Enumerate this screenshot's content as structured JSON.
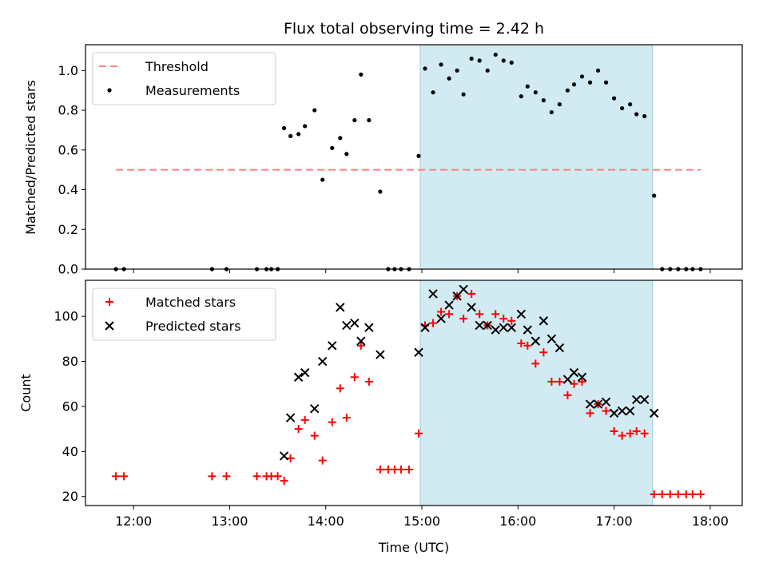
{
  "title": "Flux total observing time = 2.42 h",
  "xlabel": "Time (UTC)",
  "x_ticks": [
    "12:00",
    "13:00",
    "14:00",
    "15:00",
    "16:00",
    "17:00",
    "18:00"
  ],
  "colors": {
    "shade": "#add8e6",
    "threshold": "#ff7f7f",
    "measurements": "#000000",
    "matched": "#ff0000",
    "predicted": "#000000"
  },
  "chart_data": [
    {
      "type": "scatter",
      "ylabel": "Matched/Predicted stars",
      "xlim": [
        "11:30",
        "18:20"
      ],
      "ylim": [
        0,
        1.13
      ],
      "y_ticks": [
        0.0,
        0.2,
        0.4,
        0.6,
        0.8,
        1.0
      ],
      "y_tick_labels": [
        "0.0",
        "0.2",
        "0.4",
        "0.6",
        "0.8",
        "1.0"
      ],
      "shaded_span": [
        "14:59",
        "17:24"
      ],
      "legend_position": "upper-left",
      "threshold": {
        "name": "Threshold",
        "y": 0.5,
        "x_range": [
          "11:49",
          "17:54"
        ]
      },
      "series": [
        {
          "name": "Measurements",
          "points": [
            [
              "11:49",
              0.0
            ],
            [
              "11:54",
              0.0
            ],
            [
              "12:49",
              0.0
            ],
            [
              "12:58",
              0.0
            ],
            [
              "13:17",
              0.0
            ],
            [
              "13:23",
              0.0
            ],
            [
              "13:26",
              0.0
            ],
            [
              "13:30",
              0.0
            ],
            [
              "13:34",
              0.71
            ],
            [
              "13:38",
              0.67
            ],
            [
              "13:43",
              0.68
            ],
            [
              "13:47",
              0.72
            ],
            [
              "13:53",
              0.8
            ],
            [
              "13:58",
              0.45
            ],
            [
              "14:04",
              0.61
            ],
            [
              "14:09",
              0.66
            ],
            [
              "14:13",
              0.58
            ],
            [
              "14:18",
              0.75
            ],
            [
              "14:22",
              0.98
            ],
            [
              "14:27",
              0.75
            ],
            [
              "14:34",
              0.39
            ],
            [
              "14:39",
              0.0
            ],
            [
              "14:43",
              0.0
            ],
            [
              "14:47",
              0.0
            ],
            [
              "14:52",
              0.0
            ],
            [
              "14:58",
              0.57
            ],
            [
              "15:02",
              1.01
            ],
            [
              "15:07",
              0.89
            ],
            [
              "15:12",
              1.03
            ],
            [
              "15:17",
              0.96
            ],
            [
              "15:22",
              1.0
            ],
            [
              "15:26",
              0.88
            ],
            [
              "15:31",
              1.06
            ],
            [
              "15:36",
              1.05
            ],
            [
              "15:41",
              1.0
            ],
            [
              "15:46",
              1.08
            ],
            [
              "15:51",
              1.05
            ],
            [
              "15:56",
              1.04
            ],
            [
              "16:02",
              0.87
            ],
            [
              "16:06",
              0.92
            ],
            [
              "16:11",
              0.89
            ],
            [
              "16:16",
              0.85
            ],
            [
              "16:21",
              0.79
            ],
            [
              "16:26",
              0.83
            ],
            [
              "16:31",
              0.9
            ],
            [
              "16:35",
              0.93
            ],
            [
              "16:40",
              0.97
            ],
            [
              "16:45",
              0.94
            ],
            [
              "16:50",
              1.0
            ],
            [
              "16:55",
              0.94
            ],
            [
              "17:00",
              0.86
            ],
            [
              "17:05",
              0.81
            ],
            [
              "17:10",
              0.83
            ],
            [
              "17:14",
              0.78
            ],
            [
              "17:19",
              0.77
            ],
            [
              "17:25",
              0.37
            ],
            [
              "17:30",
              0.0
            ],
            [
              "17:35",
              0.0
            ],
            [
              "17:40",
              0.0
            ],
            [
              "17:45",
              0.0
            ],
            [
              "17:49",
              0.0
            ],
            [
              "17:54",
              0.0
            ]
          ]
        }
      ]
    },
    {
      "type": "scatter",
      "ylabel": "Count",
      "xlim": [
        "11:30",
        "18:20"
      ],
      "ylim": [
        16,
        116
      ],
      "y_ticks": [
        20,
        40,
        60,
        80,
        100
      ],
      "y_tick_labels": [
        "20",
        "40",
        "60",
        "80",
        "100"
      ],
      "shaded_span": [
        "14:59",
        "17:24"
      ],
      "legend_position": "upper-left",
      "series": [
        {
          "name": "Matched stars",
          "marker": "plus",
          "points": [
            [
              "11:49",
              29
            ],
            [
              "11:54",
              29
            ],
            [
              "12:49",
              29
            ],
            [
              "12:58",
              29
            ],
            [
              "13:17",
              29
            ],
            [
              "13:23",
              29
            ],
            [
              "13:26",
              29
            ],
            [
              "13:30",
              29
            ],
            [
              "13:34",
              27
            ],
            [
              "13:38",
              37
            ],
            [
              "13:43",
              50
            ],
            [
              "13:47",
              54
            ],
            [
              "13:53",
              47
            ],
            [
              "13:58",
              36
            ],
            [
              "14:04",
              53
            ],
            [
              "14:09",
              68
            ],
            [
              "14:13",
              55
            ],
            [
              "14:18",
              73
            ],
            [
              "14:22",
              87
            ],
            [
              "14:27",
              71
            ],
            [
              "14:34",
              32
            ],
            [
              "14:39",
              32
            ],
            [
              "14:43",
              32
            ],
            [
              "14:47",
              32
            ],
            [
              "14:52",
              32
            ],
            [
              "14:58",
              48
            ],
            [
              "15:02",
              96
            ],
            [
              "15:07",
              97
            ],
            [
              "15:12",
              102
            ],
            [
              "15:17",
              101
            ],
            [
              "15:22",
              109
            ],
            [
              "15:26",
              99
            ],
            [
              "15:31",
              110
            ],
            [
              "15:36",
              101
            ],
            [
              "15:41",
              96
            ],
            [
              "15:46",
              101
            ],
            [
              "15:51",
              99
            ],
            [
              "15:56",
              98
            ],
            [
              "16:02",
              88
            ],
            [
              "16:06",
              87
            ],
            [
              "16:11",
              79
            ],
            [
              "16:16",
              84
            ],
            [
              "16:21",
              71
            ],
            [
              "16:26",
              71
            ],
            [
              "16:31",
              65
            ],
            [
              "16:35",
              70
            ],
            [
              "16:40",
              71
            ],
            [
              "16:45",
              57
            ],
            [
              "16:50",
              61
            ],
            [
              "16:55",
              58
            ],
            [
              "17:00",
              49
            ],
            [
              "17:05",
              47
            ],
            [
              "17:10",
              48
            ],
            [
              "17:14",
              49
            ],
            [
              "17:19",
              48
            ],
            [
              "17:25",
              21
            ],
            [
              "17:30",
              21
            ],
            [
              "17:35",
              21
            ],
            [
              "17:40",
              21
            ],
            [
              "17:45",
              21
            ],
            [
              "17:49",
              21
            ],
            [
              "17:54",
              21
            ]
          ]
        },
        {
          "name": "Predicted stars",
          "marker": "x",
          "points": [
            [
              "13:34",
              38
            ],
            [
              "13:38",
              55
            ],
            [
              "13:43",
              73
            ],
            [
              "13:47",
              75
            ],
            [
              "13:53",
              59
            ],
            [
              "13:58",
              80
            ],
            [
              "14:04",
              87
            ],
            [
              "14:09",
              104
            ],
            [
              "14:13",
              96
            ],
            [
              "14:18",
              97
            ],
            [
              "14:22",
              89
            ],
            [
              "14:27",
              95
            ],
            [
              "14:34",
              83
            ],
            [
              "14:58",
              84
            ],
            [
              "15:02",
              95
            ],
            [
              "15:07",
              110
            ],
            [
              "15:12",
              99
            ],
            [
              "15:17",
              105
            ],
            [
              "15:22",
              109
            ],
            [
              "15:26",
              112
            ],
            [
              "15:31",
              104
            ],
            [
              "15:36",
              96
            ],
            [
              "15:41",
              96
            ],
            [
              "15:46",
              94
            ],
            [
              "15:51",
              95
            ],
            [
              "15:56",
              95
            ],
            [
              "16:02",
              101
            ],
            [
              "16:06",
              94
            ],
            [
              "16:11",
              89
            ],
            [
              "16:16",
              98
            ],
            [
              "16:21",
              90
            ],
            [
              "16:26",
              86
            ],
            [
              "16:31",
              72
            ],
            [
              "16:35",
              75
            ],
            [
              "16:40",
              73
            ],
            [
              "16:45",
              61
            ],
            [
              "16:50",
              61
            ],
            [
              "16:55",
              62
            ],
            [
              "17:00",
              57
            ],
            [
              "17:05",
              58
            ],
            [
              "17:10",
              58
            ],
            [
              "17:14",
              63
            ],
            [
              "17:19",
              63
            ],
            [
              "17:25",
              57
            ]
          ]
        }
      ]
    }
  ]
}
